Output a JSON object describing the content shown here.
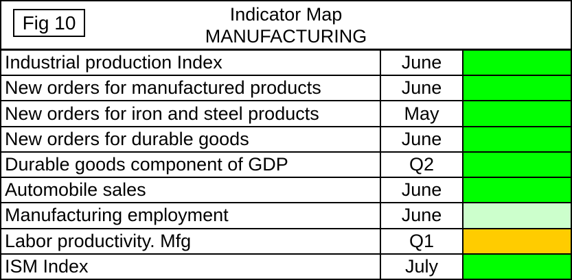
{
  "meta": {
    "figure_label": "Fig 10",
    "title": "Indicator Map",
    "subtitle": "MANUFACTURING"
  },
  "palette": {
    "green": "#00ff00",
    "light_green": "#ccffcc",
    "amber": "#ffcc00",
    "border": "#000000"
  },
  "chart_data": {
    "type": "table",
    "figure_label": "Fig 10",
    "title": "Indicator Map",
    "subtitle": "MANUFACTURING",
    "rows": [
      {
        "indicator": "Industrial production Index",
        "period": "June",
        "status_color": "green"
      },
      {
        "indicator": "New orders for manufactured products",
        "period": "June",
        "status_color": "green"
      },
      {
        "indicator": "New orders for iron and steel products",
        "period": "May",
        "status_color": "green"
      },
      {
        "indicator": "New orders for durable goods",
        "period": "June",
        "status_color": "green"
      },
      {
        "indicator": "Durable goods component of GDP",
        "period": "Q2",
        "status_color": "green"
      },
      {
        "indicator": "Automobile sales",
        "period": "June",
        "status_color": "green"
      },
      {
        "indicator": "Manufacturing employment",
        "period": "June",
        "status_color": "light_green"
      },
      {
        "indicator": "Labor productivity. Mfg",
        "period": "Q1",
        "status_color": "amber"
      },
      {
        "indicator": "ISM Index",
        "period": "July",
        "status_color": "green"
      }
    ]
  }
}
